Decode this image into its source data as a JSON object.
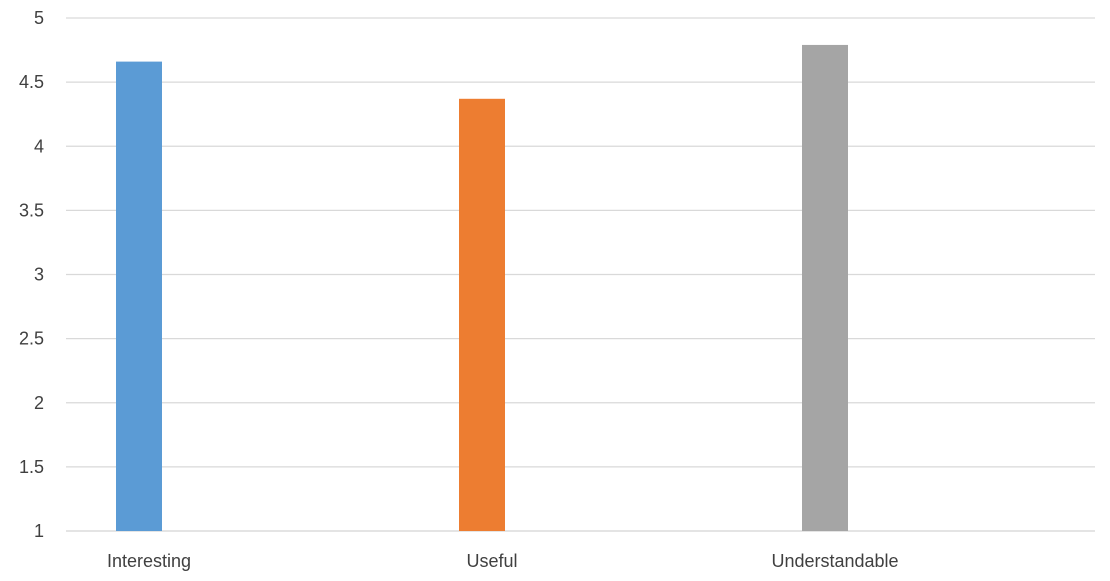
{
  "chart_data": {
    "type": "bar",
    "categories": [
      "Interesting",
      "Useful",
      "Understandable"
    ],
    "values": [
      4.66,
      4.37,
      4.79
    ],
    "colors": [
      "#5B9BD5",
      "#ED7D31",
      "#A5A5A5"
    ],
    "ylim": [
      1,
      5
    ],
    "yticks": [
      "1",
      "1.5",
      "2",
      "2.5",
      "3",
      "3.5",
      "4",
      "4.5",
      "5"
    ],
    "grid": true,
    "gridline_color": "#D9D9D9",
    "legend": "none"
  }
}
